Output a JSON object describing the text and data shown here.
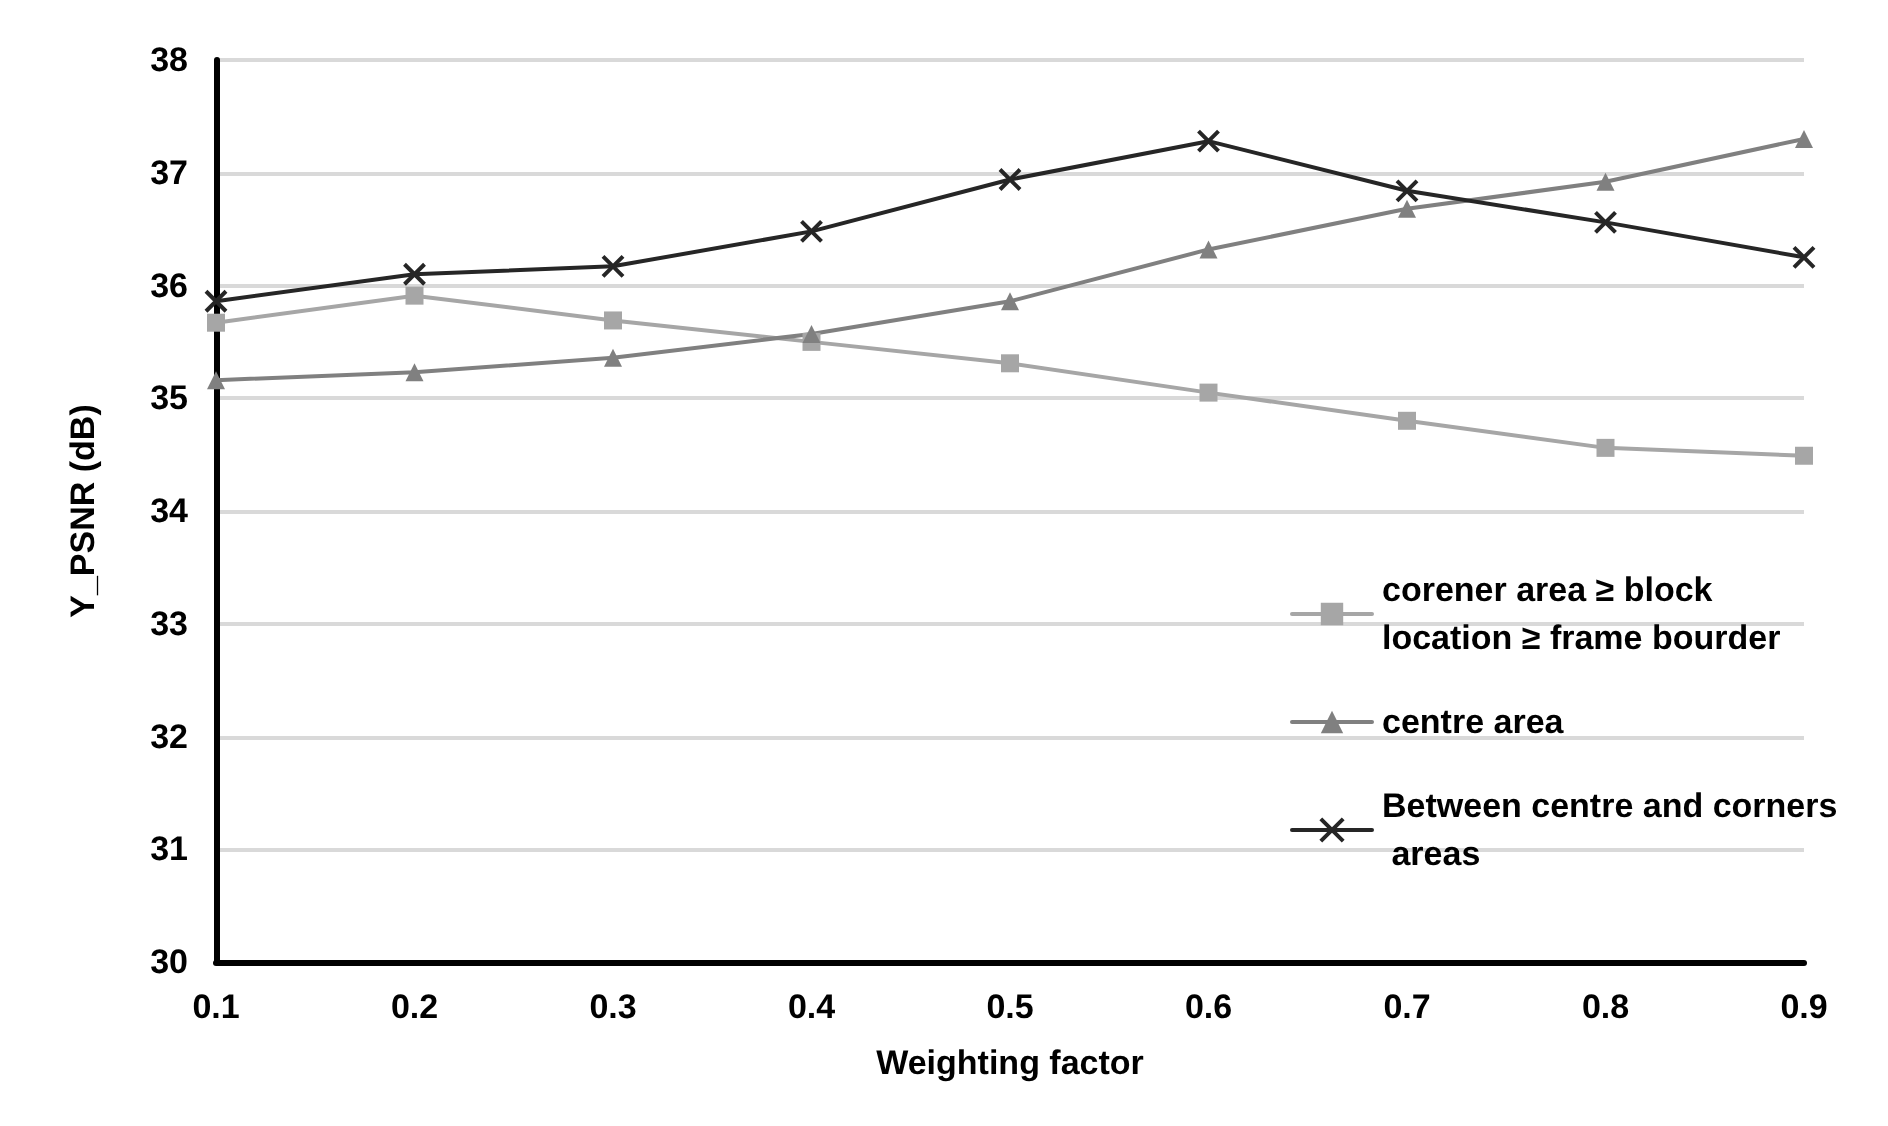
{
  "chart_data": {
    "type": "line",
    "xlabel": "Weighting factor",
    "ylabel": "Y_PSNR (dB)",
    "x": [
      0.1,
      0.2,
      0.3,
      0.4,
      0.5,
      0.6,
      0.7,
      0.8,
      0.9
    ],
    "xlim": [
      0.1,
      0.9
    ],
    "xticks": [
      0.1,
      0.2,
      0.3,
      0.4,
      0.5,
      0.6,
      0.7,
      0.8,
      0.9
    ],
    "ylim": [
      30,
      38
    ],
    "yticks": [
      30,
      31,
      32,
      33,
      34,
      35,
      36,
      37,
      38
    ],
    "grid": "y",
    "legend": "right",
    "line_style": "solid",
    "series": [
      {
        "name": "corener area ≥ block location ≥ frame bourder",
        "color": "#a6a6a6",
        "marker": "square",
        "values": [
          35.67,
          35.91,
          35.69,
          35.5,
          35.31,
          35.05,
          34.8,
          34.56,
          34.49
        ]
      },
      {
        "name": "centre area",
        "color": "#808080",
        "marker": "triangle",
        "values": [
          35.16,
          35.23,
          35.36,
          35.57,
          35.86,
          36.32,
          36.68,
          36.92,
          37.3
        ]
      },
      {
        "name": "Between centre and corners areas",
        "color": "#262626",
        "marker": "cross",
        "values": [
          35.86,
          36.1,
          36.17,
          36.48,
          36.94,
          37.28,
          36.84,
          36.56,
          36.25
        ]
      }
    ]
  }
}
